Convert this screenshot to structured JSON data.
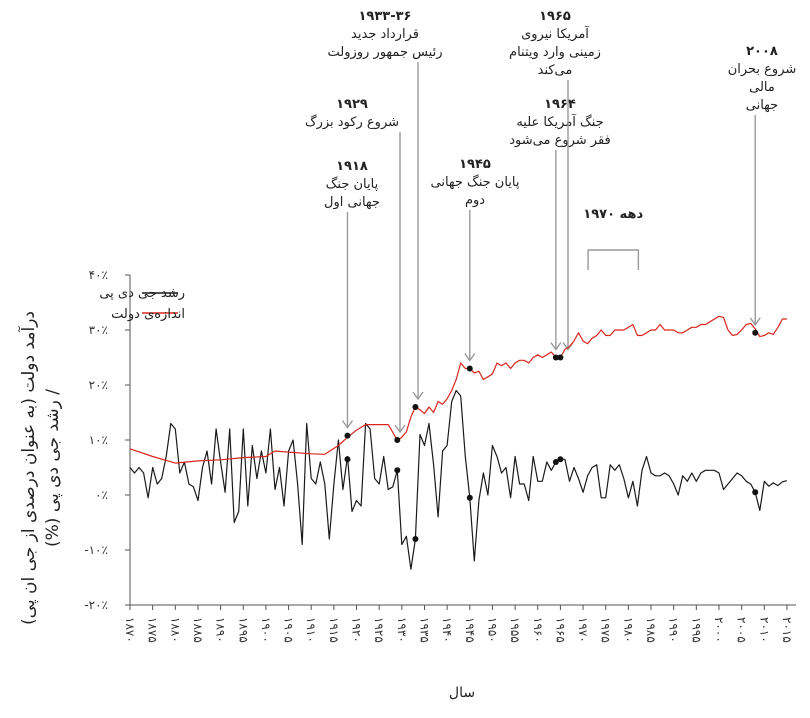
{
  "chart_data": {
    "type": "line",
    "title": "",
    "xlabel": "سال",
    "ylabel_line1": "درآمد دولت (به عنوان درصدی از جی ان پی)",
    "ylabel_line2": "/ رشد جی دی پی (%)",
    "xlim": [
      1870,
      2017
    ],
    "ylim": [
      -20,
      40
    ],
    "y_ticks": [
      {
        "value": 40,
        "label": "۴۰٪"
      },
      {
        "value": 30,
        "label": "۳۰٪"
      },
      {
        "value": 20,
        "label": "۲۰٪"
      },
      {
        "value": 10,
        "label": "۱۰٪"
      },
      {
        "value": 0,
        "label": "۰٪"
      },
      {
        "value": -10,
        "label": "-۱۰٪"
      },
      {
        "value": -20,
        "label": "-۲۰٪"
      }
    ],
    "x_ticks": [
      {
        "value": 1870,
        "label": "۱۸۷۰"
      },
      {
        "value": 1875,
        "label": "۱۸۷۵"
      },
      {
        "value": 1880,
        "label": "۱۸۸۰"
      },
      {
        "value": 1885,
        "label": "۱۸۸۵"
      },
      {
        "value": 1890,
        "label": "۱۸۹۰"
      },
      {
        "value": 1895,
        "label": "۱۸۹۵"
      },
      {
        "value": 1900,
        "label": "۱۹۰۰"
      },
      {
        "value": 1905,
        "label": "۱۹۰۵"
      },
      {
        "value": 1910,
        "label": "۱۹۱۰"
      },
      {
        "value": 1915,
        "label": "۱۹۱۵"
      },
      {
        "value": 1920,
        "label": "۱۹۲۰"
      },
      {
        "value": 1925,
        "label": "۱۹۲۵"
      },
      {
        "value": 1930,
        "label": "۱۹۳۰"
      },
      {
        "value": 1935,
        "label": "۱۹۳۵"
      },
      {
        "value": 1940,
        "label": "۱۹۴۰"
      },
      {
        "value": 1945,
        "label": "۱۹۴۵"
      },
      {
        "value": 1950,
        "label": "۱۹۵۰"
      },
      {
        "value": 1955,
        "label": "۱۹۵۵"
      },
      {
        "value": 1960,
        "label": "۱۹۶۰"
      },
      {
        "value": 1965,
        "label": "۱۹۶۵"
      },
      {
        "value": 1970,
        "label": "۱۹۷۰"
      },
      {
        "value": 1975,
        "label": "۱۹۷۵"
      },
      {
        "value": 1980,
        "label": "۱۹۸۰"
      },
      {
        "value": 1985,
        "label": "۱۹۸۵"
      },
      {
        "value": 1990,
        "label": "۱۹۹۰"
      },
      {
        "value": 1995,
        "label": "۱۹۹۵"
      },
      {
        "value": 2000,
        "label": "۲۰۰۰"
      },
      {
        "value": 2005,
        "label": "۲۰۰۵"
      },
      {
        "value": 2010,
        "label": "۲۰۱۰"
      },
      {
        "value": 2015,
        "label": "۲۰۱۵"
      }
    ],
    "grid": false,
    "legend_position": "top-left",
    "series": [
      {
        "name": "رشد جی دی پی",
        "color": "#1a1a1a",
        "points": [
          [
            1870,
            5
          ],
          [
            1871,
            4
          ],
          [
            1872,
            5
          ],
          [
            1873,
            4
          ],
          [
            1874,
            -0.5
          ],
          [
            1875,
            5
          ],
          [
            1876,
            2
          ],
          [
            1877,
            3
          ],
          [
            1878,
            7
          ],
          [
            1879,
            13
          ],
          [
            1880,
            12
          ],
          [
            1881,
            4
          ],
          [
            1882,
            6
          ],
          [
            1883,
            2
          ],
          [
            1884,
            1.5
          ],
          [
            1885,
            -1
          ],
          [
            1886,
            5
          ],
          [
            1887,
            8
          ],
          [
            1888,
            2
          ],
          [
            1889,
            12
          ],
          [
            1890,
            6
          ],
          [
            1891,
            0.5
          ],
          [
            1892,
            12
          ],
          [
            1893,
            -5
          ],
          [
            1894,
            -3
          ],
          [
            1895,
            12
          ],
          [
            1896,
            -2
          ],
          [
            1897,
            9
          ],
          [
            1898,
            3
          ],
          [
            1899,
            8
          ],
          [
            1900,
            4
          ],
          [
            1901,
            12
          ],
          [
            1902,
            1
          ],
          [
            1903,
            5
          ],
          [
            1904,
            -2
          ],
          [
            1905,
            8
          ],
          [
            1906,
            10
          ],
          [
            1907,
            2
          ],
          [
            1908,
            -9
          ],
          [
            1909,
            13
          ],
          [
            1910,
            3
          ],
          [
            1911,
            2
          ],
          [
            1912,
            6
          ],
          [
            1913,
            2
          ],
          [
            1914,
            -8
          ],
          [
            1915,
            2
          ],
          [
            1916,
            10
          ],
          [
            1917,
            1
          ],
          [
            1918,
            7
          ],
          [
            1919,
            -3
          ],
          [
            1920,
            -1
          ],
          [
            1921,
            -2
          ],
          [
            1922,
            13
          ],
          [
            1923,
            12
          ],
          [
            1924,
            3
          ],
          [
            1925,
            2
          ],
          [
            1926,
            7
          ],
          [
            1927,
            1
          ],
          [
            1928,
            1.5
          ],
          [
            1929,
            4.5
          ],
          [
            1930,
            -9
          ],
          [
            1931,
            -7.5
          ],
          [
            1932,
            -13.5
          ],
          [
            1933,
            -8
          ],
          [
            1934,
            11
          ],
          [
            1935,
            9
          ],
          [
            1936,
            13
          ],
          [
            1937,
            5.5
          ],
          [
            1938,
            -4
          ],
          [
            1939,
            8
          ],
          [
            1940,
            9
          ],
          [
            1941,
            17
          ],
          [
            1942,
            19
          ],
          [
            1943,
            18
          ],
          [
            1944,
            7
          ],
          [
            1945,
            -0.5
          ],
          [
            1946,
            -12
          ],
          [
            1947,
            -1
          ],
          [
            1948,
            4
          ],
          [
            1949,
            0
          ],
          [
            1950,
            9
          ],
          [
            1951,
            7
          ],
          [
            1952,
            4
          ],
          [
            1953,
            5
          ],
          [
            1954,
            -0.5
          ],
          [
            1955,
            7
          ],
          [
            1956,
            2
          ],
          [
            1957,
            2
          ],
          [
            1958,
            -1
          ],
          [
            1959,
            7
          ],
          [
            1960,
            2.5
          ],
          [
            1961,
            2.5
          ],
          [
            1962,
            6
          ],
          [
            1963,
            4.5
          ],
          [
            1964,
            6
          ],
          [
            1965,
            6.5
          ],
          [
            1966,
            6.5
          ],
          [
            1967,
            2.5
          ],
          [
            1968,
            5
          ],
          [
            1969,
            3
          ],
          [
            1970,
            0.5
          ],
          [
            1971,
            3.5
          ],
          [
            1972,
            5
          ],
          [
            1973,
            5.5
          ],
          [
            1974,
            -0.5
          ],
          [
            1975,
            -0.5
          ],
          [
            1976,
            5.5
          ],
          [
            1977,
            4.5
          ],
          [
            1978,
            5.5
          ],
          [
            1979,
            3
          ],
          [
            1980,
            -0.5
          ],
          [
            1981,
            2.5
          ],
          [
            1982,
            -2
          ],
          [
            1983,
            4.5
          ],
          [
            1984,
            7
          ],
          [
            1985,
            4
          ],
          [
            1986,
            3.5
          ],
          [
            1987,
            3.5
          ],
          [
            1988,
            4
          ],
          [
            1989,
            3.5
          ],
          [
            1990,
            2
          ],
          [
            1991,
            0
          ],
          [
            1992,
            3.5
          ],
          [
            1993,
            2.5
          ],
          [
            1994,
            4
          ],
          [
            1995,
            2.5
          ],
          [
            1996,
            4
          ],
          [
            1997,
            4.5
          ],
          [
            1998,
            4.5
          ],
          [
            1999,
            4.5
          ],
          [
            2000,
            4
          ],
          [
            2001,
            1
          ],
          [
            2002,
            2
          ],
          [
            2003,
            3
          ],
          [
            2004,
            4
          ],
          [
            2005,
            3.5
          ],
          [
            2006,
            2.5
          ],
          [
            2007,
            2
          ],
          [
            2008,
            0.5
          ],
          [
            2009,
            -2.8
          ],
          [
            2010,
            2.5
          ],
          [
            2011,
            1.6
          ],
          [
            2012,
            2.2
          ],
          [
            2013,
            1.7
          ],
          [
            2014,
            2.4
          ],
          [
            2015,
            2.6
          ]
        ]
      },
      {
        "name": "اندازه‌ی دولت",
        "color": "#d9261c",
        "points": [
          [
            1870,
            8.4
          ],
          [
            1875,
            7
          ],
          [
            1880,
            5.8
          ],
          [
            1885,
            6.2
          ],
          [
            1890,
            6.4
          ],
          [
            1895,
            6.8
          ],
          [
            1900,
            7
          ],
          [
            1902,
            8
          ],
          [
            1905,
            7.8
          ],
          [
            1910,
            7.5
          ],
          [
            1913,
            7.4
          ],
          [
            1916,
            9
          ],
          [
            1918,
            10.5
          ],
          [
            1920,
            11.8
          ],
          [
            1922,
            12.8
          ],
          [
            1925,
            12.8
          ],
          [
            1927,
            12.8
          ],
          [
            1929,
            10
          ],
          [
            1930,
            10.5
          ],
          [
            1931,
            11.5
          ],
          [
            1932,
            14.2
          ],
          [
            1933,
            16
          ],
          [
            1934,
            15.5
          ],
          [
            1935,
            14.8
          ],
          [
            1936,
            16
          ],
          [
            1937,
            15
          ],
          [
            1938,
            17
          ],
          [
            1939,
            16.5
          ],
          [
            1940,
            17.5
          ],
          [
            1941,
            19
          ],
          [
            1942,
            21
          ],
          [
            1943,
            24
          ],
          [
            1944,
            23
          ],
          [
            1945,
            23
          ],
          [
            1946,
            22.2
          ],
          [
            1947,
            22.5
          ],
          [
            1948,
            21
          ],
          [
            1949,
            21.5
          ],
          [
            1950,
            22
          ],
          [
            1951,
            24
          ],
          [
            1952,
            23.5
          ],
          [
            1953,
            24
          ],
          [
            1954,
            23
          ],
          [
            1955,
            24
          ],
          [
            1956,
            24.5
          ],
          [
            1957,
            24.5
          ],
          [
            1958,
            24
          ],
          [
            1959,
            25
          ],
          [
            1960,
            25.5
          ],
          [
            1961,
            25
          ],
          [
            1962,
            25.5
          ],
          [
            1963,
            26
          ],
          [
            1964,
            25
          ],
          [
            1965,
            25
          ],
          [
            1966,
            26.5
          ],
          [
            1967,
            27
          ],
          [
            1968,
            28
          ],
          [
            1969,
            29.5
          ],
          [
            1970,
            28
          ],
          [
            1971,
            27.5
          ],
          [
            1972,
            28.5
          ],
          [
            1973,
            29
          ],
          [
            1974,
            30
          ],
          [
            1975,
            29
          ],
          [
            1976,
            29
          ],
          [
            1977,
            30
          ],
          [
            1978,
            30
          ],
          [
            1979,
            30
          ],
          [
            1980,
            30.5
          ],
          [
            1981,
            31
          ],
          [
            1982,
            29
          ],
          [
            1983,
            29
          ],
          [
            1984,
            29.5
          ],
          [
            1985,
            30
          ],
          [
            1986,
            30
          ],
          [
            1987,
            31
          ],
          [
            1988,
            30
          ],
          [
            1989,
            30
          ],
          [
            1990,
            30
          ],
          [
            1991,
            29.5
          ],
          [
            1992,
            29.5
          ],
          [
            1993,
            30
          ],
          [
            1994,
            30.5
          ],
          [
            1995,
            30.5
          ],
          [
            1996,
            31
          ],
          [
            1997,
            31
          ],
          [
            1998,
            31.5
          ],
          [
            1999,
            32
          ],
          [
            2000,
            32.5
          ],
          [
            2001,
            32.3
          ],
          [
            2002,
            30
          ],
          [
            2003,
            29
          ],
          [
            2004,
            29.2
          ],
          [
            2005,
            30
          ],
          [
            2006,
            31
          ],
          [
            2007,
            31.2
          ],
          [
            2008,
            30.2
          ],
          [
            2009,
            28.8
          ],
          [
            2010,
            29
          ],
          [
            2011,
            29.5
          ],
          [
            2012,
            29.2
          ],
          [
            2013,
            30.5
          ],
          [
            2014,
            32
          ],
          [
            2015,
            32
          ]
        ]
      }
    ],
    "markers": [
      {
        "year": 1918,
        "gov": 10.8,
        "gdp": 6.5
      },
      {
        "year": 1929,
        "gov": 10,
        "gdp": 4.5
      },
      {
        "year": 1933,
        "gov": 16,
        "gdp": -8
      },
      {
        "year": 1945,
        "gov": 23,
        "gdp": -0.5
      },
      {
        "year": 1964,
        "gov": 25,
        "gdp": 6
      },
      {
        "year": 1965,
        "gov": 25,
        "gdp": 6.5
      },
      {
        "year": 2008,
        "gov": 29.5,
        "gdp": 0.5
      }
    ],
    "decade_bracket": {
      "label": "دهه ۱۹۷۰",
      "from": 1970,
      "to": 1980
    },
    "annotations": [
      {
        "id": "1918",
        "year_label": "۱۹۱۸",
        "lines": [
          "پایان جنگ",
          "جهانی اول"
        ],
        "arrow_year": 1918
      },
      {
        "id": "1929",
        "year_label": "۱۹۲۹",
        "lines": [
          "شروع رکود بزرگ"
        ],
        "arrow_year": 1929
      },
      {
        "id": "1933",
        "year_label": "۱۹۳۳-۳۶",
        "lines": [
          "قرارداد جدید",
          "رئیس جمهور روزولت"
        ],
        "arrow_year": 1933
      },
      {
        "id": "1945",
        "year_label": "۱۹۴۵",
        "lines": [
          "پایان جنگ جهانی",
          "دوم"
        ],
        "arrow_year": 1945
      },
      {
        "id": "1964",
        "year_label": "۱۹۶۴",
        "lines": [
          "جنگ آمریکا علیه",
          "فقر شروع می‌شود"
        ],
        "arrow_year": 1964
      },
      {
        "id": "1965",
        "year_label": "۱۹۶۵",
        "lines": [
          "آمریکا نیروی",
          "زمینی وارد ویتنام",
          "می‌کند"
        ],
        "arrow_year": 1965
      },
      {
        "id": "2008",
        "year_label": "۲۰۰۸",
        "lines": [
          "شروع بحران",
          "مالی",
          "جهانی"
        ],
        "arrow_year": 2008
      }
    ]
  }
}
